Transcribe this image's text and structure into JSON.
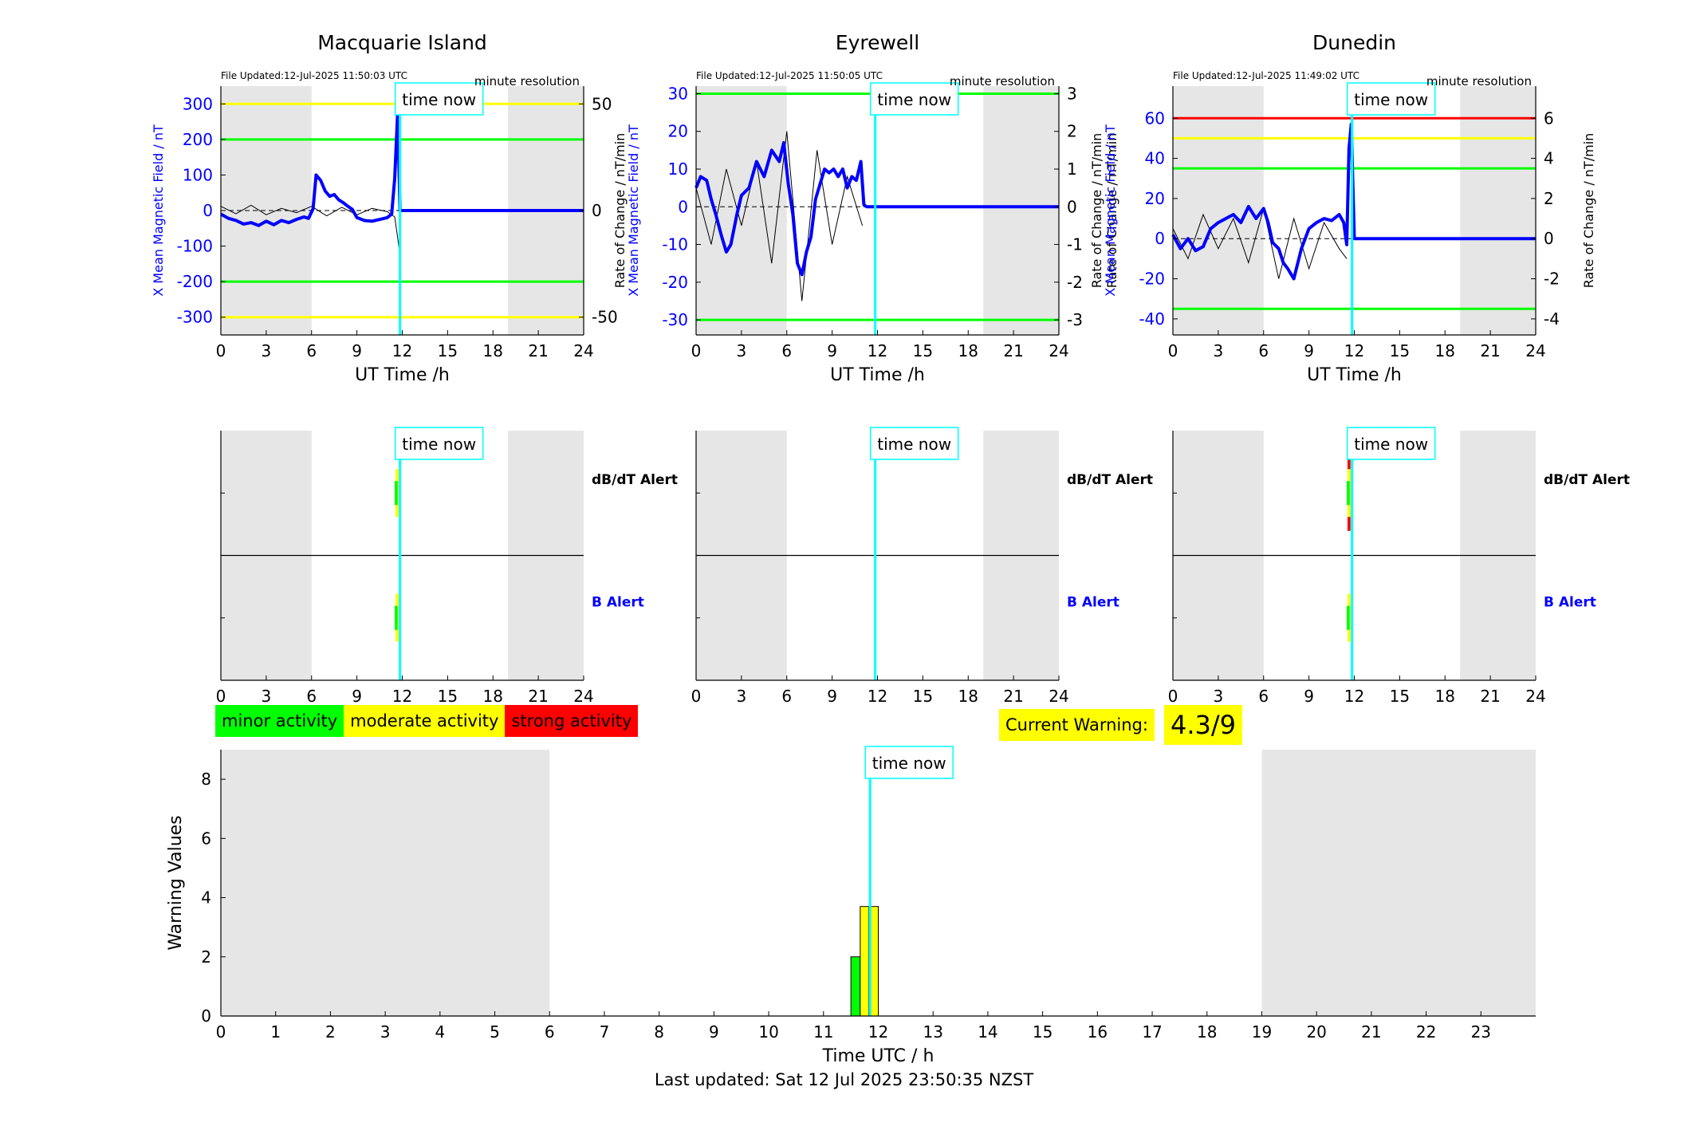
{
  "page": {
    "last_updated": "Last updated: Sat 12 Jul 2025 23:50:35 NZST"
  },
  "legend": {
    "items": [
      {
        "label": "minor activity",
        "color": "#00ff00"
      },
      {
        "label": "moderate activity",
        "color": "#ffff00"
      },
      {
        "label": "strong activity",
        "color": "#ff0000"
      }
    ]
  },
  "current_warning": {
    "label": "Current Warning:",
    "value": "4.3/9"
  },
  "chart_data": [
    {
      "type": "line",
      "title": "Macquarie Island",
      "file_updated": "File Updated:12-Jul-2025 11:50:03 UTC",
      "resolution": "minute resolution",
      "time_now_label": "time now",
      "time_now": 11.85,
      "xlabel": "UT Time /h",
      "ylabel": "X Mean Magnetic Field / nT",
      "ylabel_right": "",
      "xlim": [
        0,
        24
      ],
      "ylim": [
        -350,
        350
      ],
      "xticks": [
        0,
        3,
        6,
        9,
        12,
        15,
        18,
        21,
        24
      ],
      "yticks": [
        -300,
        -200,
        -100,
        0,
        100,
        200,
        300
      ],
      "right_ylim": [
        -58.33,
        58.33
      ],
      "right_yticks": [
        -50,
        0,
        50
      ],
      "night_shading": [
        [
          0,
          6
        ],
        [
          19,
          24
        ]
      ],
      "threshold_lines": [
        {
          "value": 300,
          "color": "#ffff00"
        },
        {
          "value": 200,
          "color": "#00ff00"
        },
        {
          "value": -200,
          "color": "#00ff00"
        },
        {
          "value": -300,
          "color": "#ffff00"
        }
      ],
      "series": [
        {
          "color": "#0000ff",
          "x": [
            0,
            0.5,
            1,
            1.5,
            2,
            2.5,
            3,
            3.5,
            4,
            4.5,
            5,
            5.5,
            5.8,
            6.1,
            6.3,
            6.6,
            6.9,
            7.2,
            7.5,
            7.8,
            8.1,
            8.4,
            8.7,
            9,
            9.5,
            10,
            10.5,
            11,
            11.3,
            11.5,
            11.7,
            11.85,
            12,
            15,
            18,
            21,
            24
          ],
          "values": [
            -10,
            -22,
            -28,
            -38,
            -34,
            -42,
            -30,
            -40,
            -28,
            -34,
            -25,
            -18,
            -22,
            5,
            100,
            85,
            55,
            40,
            45,
            30,
            22,
            12,
            3,
            -20,
            -28,
            -30,
            -25,
            -20,
            -10,
            90,
            280,
            0,
            0,
            0,
            0,
            0,
            0
          ]
        },
        {
          "name": "",
          "color": "#000000",
          "x": [
            0,
            1,
            2,
            3,
            4,
            5,
            6,
            7,
            8,
            9,
            10,
            11,
            11.5,
            11.8
          ],
          "values": [
            2,
            -1.5,
            2.5,
            -2,
            1,
            -1,
            2,
            -2.5,
            1.5,
            -2,
            1,
            -0.5,
            -3,
            -18
          ]
        }
      ]
    },
    {
      "type": "line",
      "title": "Eyrewell",
      "file_updated": "File Updated:12-Jul-2025 11:50:05 UTC",
      "resolution": "minute resolution",
      "time_now_label": "time now",
      "time_now": 11.85,
      "xlabel": "UT Time /h",
      "ylabel": "X Mean Magnetic Field / nT",
      "ylabel_right": "Rate of Change / nT/min",
      "xlim": [
        0,
        24
      ],
      "ylim": [
        -34,
        32
      ],
      "xticks": [
        0,
        3,
        6,
        9,
        12,
        15,
        18,
        21,
        24
      ],
      "yticks": [
        -30,
        -20,
        -10,
        0,
        10,
        20,
        30
      ],
      "right_ylim": [
        -3.4,
        3.2
      ],
      "right_yticks": [
        -3,
        -2,
        -1,
        0,
        1,
        2,
        3
      ],
      "night_shading": [
        [
          0,
          6
        ],
        [
          19,
          24
        ]
      ],
      "threshold_lines": [
        {
          "value": 30,
          "color": "#00ff00"
        },
        {
          "value": -30,
          "color": "#00ff00"
        }
      ],
      "series": [
        {
          "color": "#0000ff",
          "x": [
            0,
            0.3,
            0.7,
            1,
            1.3,
            1.7,
            2,
            2.3,
            2.7,
            3,
            3.5,
            4,
            4.5,
            5,
            5.5,
            5.8,
            6.1,
            6.4,
            6.7,
            7,
            7.3,
            7.6,
            7.9,
            8.2,
            8.5,
            8.8,
            9.1,
            9.4,
            9.7,
            10,
            10.3,
            10.6,
            10.9,
            11.1,
            11.3,
            11.85,
            15,
            18,
            21,
            24
          ],
          "values": [
            5,
            8,
            7,
            2,
            -2,
            -8,
            -12,
            -10,
            -2,
            3,
            5,
            12,
            8,
            15,
            12,
            17,
            6,
            -2,
            -15,
            -18,
            -12,
            -8,
            2,
            6,
            10,
            9,
            10,
            8,
            10,
            5,
            8,
            7,
            12,
            0.5,
            0,
            0,
            0,
            0,
            0,
            0
          ]
        },
        {
          "name": "",
          "color": "#000000",
          "x": [
            0,
            1,
            2,
            3,
            4,
            5,
            6,
            7,
            8,
            9,
            10,
            11
          ],
          "values": [
            0.5,
            -1,
            1,
            -0.5,
            1.2,
            -1.5,
            2,
            -2.5,
            1.5,
            -1,
            0.8,
            -0.5
          ]
        }
      ]
    },
    {
      "type": "line",
      "title": "Dunedin",
      "file_updated": "File Updated:12-Jul-2025 11:49:02 UTC",
      "resolution": "minute resolution",
      "time_now_label": "time now",
      "time_now": 11.85,
      "xlabel": "UT Time /h",
      "ylabel": "X Mean Magnetic Field / nT",
      "ylabel_right": "Rate of Change / nT/min",
      "xlim": [
        0,
        24
      ],
      "ylim": [
        -48,
        76
      ],
      "xticks": [
        0,
        3,
        6,
        9,
        12,
        15,
        18,
        21,
        24
      ],
      "yticks": [
        -40,
        -20,
        0,
        20,
        40,
        60
      ],
      "right_ylim": [
        -4.8,
        7.6
      ],
      "right_yticks": [
        -4,
        -2,
        0,
        2,
        4,
        6
      ],
      "night_shading": [
        [
          0,
          6
        ],
        [
          19,
          24
        ]
      ],
      "threshold_lines": [
        {
          "value": 60,
          "color": "#ff0000"
        },
        {
          "value": 50,
          "color": "#ffff00"
        },
        {
          "value": 35,
          "color": "#00ff00"
        },
        {
          "value": -35,
          "color": "#00ff00"
        }
      ],
      "series": [
        {
          "color": "#0000ff",
          "x": [
            0,
            0.5,
            1,
            1.5,
            2,
            2.5,
            3,
            3.5,
            4,
            4.5,
            5,
            5.5,
            6,
            6.3,
            6.6,
            7,
            7.3,
            7.6,
            8,
            8.5,
            9,
            9.5,
            10,
            10.5,
            11,
            11.3,
            11.5,
            11.65,
            11.8,
            12,
            15,
            18,
            21,
            24
          ],
          "values": [
            2,
            -5,
            0,
            -6,
            -4,
            5,
            8,
            10,
            12,
            8,
            16,
            10,
            15,
            8,
            -2,
            -5,
            -12,
            -15,
            -20,
            -5,
            5,
            8,
            10,
            9,
            12,
            8,
            -3,
            45,
            57,
            0,
            0,
            0,
            0,
            0
          ]
        },
        {
          "name": "",
          "color": "#000000",
          "x": [
            0,
            1,
            2,
            3,
            4,
            5,
            6,
            7,
            8,
            9,
            10,
            11,
            11.5
          ],
          "values": [
            0.5,
            -1,
            1.2,
            -0.5,
            1,
            -1.2,
            1.5,
            -2,
            1,
            -1.5,
            0.8,
            -0.5,
            -1
          ]
        }
      ]
    },
    {
      "type": "bar",
      "title": "",
      "time_now_label": "time now",
      "time_now": 11.85,
      "xlim": [
        0,
        24
      ],
      "xticks": [
        0,
        3,
        6,
        9,
        12,
        15,
        18,
        21,
        24
      ],
      "night_shading": [
        [
          0,
          6
        ],
        [
          19,
          24
        ]
      ],
      "rows": [
        {
          "label": "dB/dT Alert",
          "label_color": "#000000",
          "segments": []
        },
        {
          "label": "B Alert",
          "label_color": "#0000ff",
          "segments": [
            {
              "x0": 11.55,
              "x1": 11.75,
              "color": "#ffff00"
            },
            {
              "x0": 11.5,
              "x1": 11.7,
              "color": "#00ff00"
            }
          ]
        }
      ],
      "alerts_top": [
        {
          "x0": 11.55,
          "x1": 11.75,
          "color": "#ffff00"
        },
        {
          "x0": 11.5,
          "x1": 11.7,
          "color": "#00ff00"
        }
      ]
    },
    {
      "type": "bar",
      "title": "",
      "time_now_label": "time now",
      "time_now": 11.85,
      "xlim": [
        0,
        24
      ],
      "xticks": [
        0,
        3,
        6,
        9,
        12,
        15,
        18,
        21,
        24
      ],
      "night_shading": [
        [
          0,
          6
        ],
        [
          19,
          24
        ]
      ],
      "rows": [
        {
          "label": "dB/dT Alert",
          "label_color": "#000000",
          "segments": []
        },
        {
          "label": "B Alert",
          "label_color": "#0000ff",
          "segments": []
        }
      ],
      "alerts_top": []
    },
    {
      "type": "bar",
      "title": "",
      "time_now_label": "time now",
      "time_now": 11.85,
      "xlim": [
        0,
        24
      ],
      "xticks": [
        0,
        3,
        6,
        9,
        12,
        15,
        18,
        21,
        24
      ],
      "night_shading": [
        [
          0,
          6
        ],
        [
          19,
          24
        ]
      ],
      "rows": [
        {
          "label": "dB/dT Alert",
          "label_color": "#000000",
          "segments": []
        },
        {
          "label": "B Alert",
          "label_color": "#0000ff",
          "segments": [
            {
              "x0": 11.55,
              "x1": 11.75,
              "color": "#ffff00"
            },
            {
              "x0": 11.5,
              "x1": 11.7,
              "color": "#00ff00"
            }
          ]
        }
      ],
      "alerts_top": [
        {
          "x0": 11.55,
          "x1": 11.75,
          "color": "#ff0000"
        },
        {
          "x0": 11.55,
          "x1": 11.75,
          "color": "#ffff00"
        },
        {
          "x0": 11.5,
          "x1": 11.7,
          "color": "#00ff00"
        }
      ]
    },
    {
      "type": "bar",
      "title": "",
      "time_now_label": "time now",
      "time_now": 11.85,
      "xlabel": "Time UTC / h",
      "ylabel": "Warning Values",
      "xlim": [
        0,
        24
      ],
      "ylim": [
        0,
        9
      ],
      "xticks": [
        0,
        1,
        2,
        3,
        4,
        5,
        6,
        7,
        8,
        9,
        10,
        11,
        12,
        13,
        14,
        15,
        16,
        17,
        18,
        19,
        20,
        21,
        22,
        23
      ],
      "yticks": [
        0,
        2,
        4,
        6,
        8
      ],
      "night_shading": [
        [
          0,
          6
        ],
        [
          19,
          24
        ]
      ],
      "bars": [
        {
          "x0": 11.5,
          "x1": 11.67,
          "value": 2.0,
          "color": "#00ff00"
        },
        {
          "x0": 11.67,
          "x1": 11.83,
          "value": 3.7,
          "color": "#ffff00"
        },
        {
          "x0": 11.83,
          "x1": 12.0,
          "value": 3.7,
          "color": "#ffff00"
        }
      ]
    }
  ]
}
